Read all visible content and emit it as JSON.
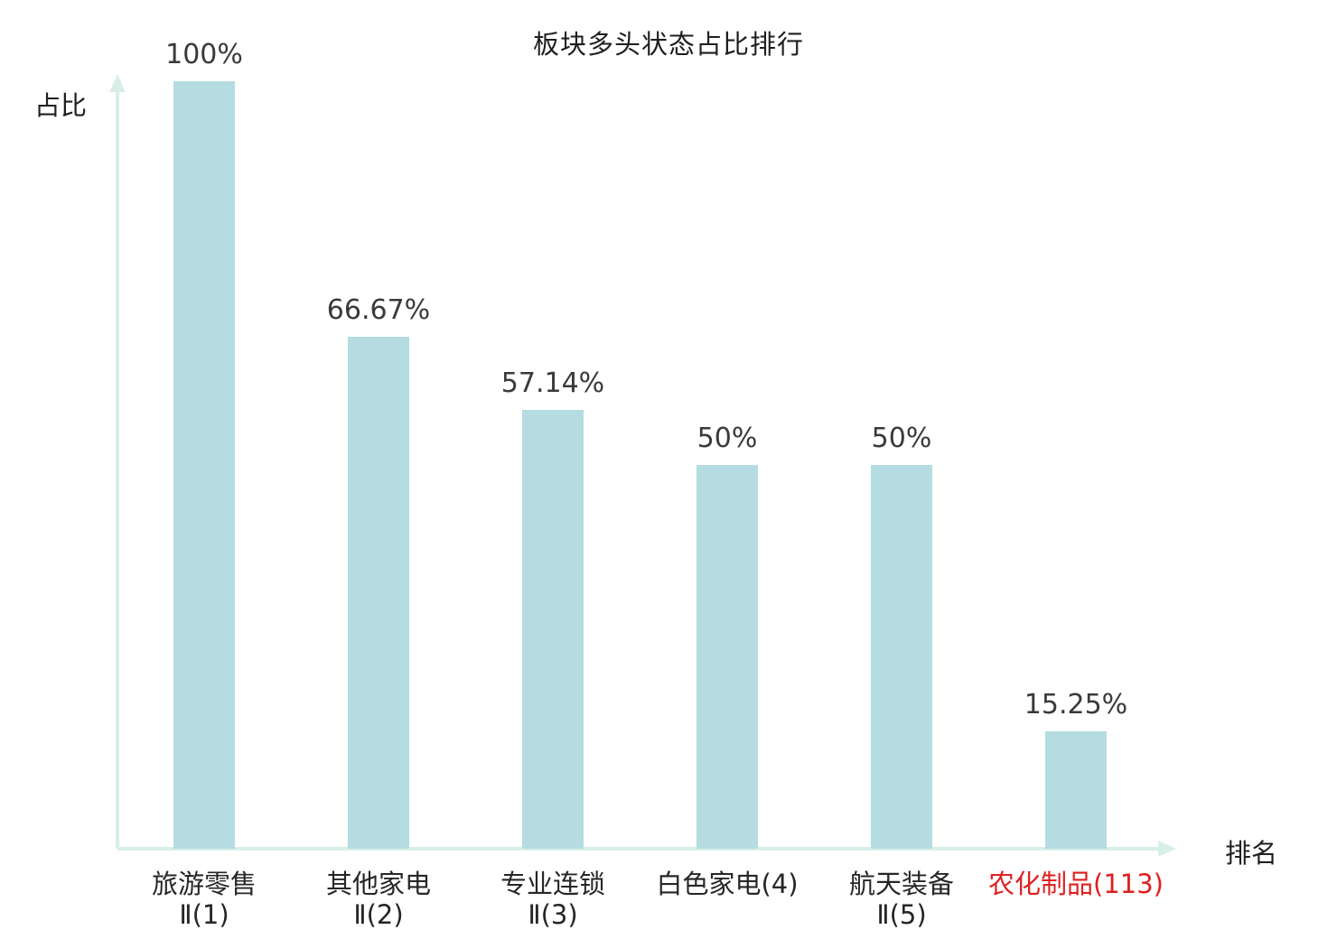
{
  "title": "板块多头状态占比排行",
  "ylabel": "占比",
  "xlabel": "排名",
  "chart_data": {
    "type": "bar",
    "title": "板块多头状态占比排行",
    "xlabel": "排名",
    "ylabel": "占比",
    "ylim": [
      0,
      100
    ],
    "grid": false,
    "legend": "none",
    "bar_color": "#b5dce1",
    "highlight_color": "#e02020",
    "axis_color": "#d8efe9",
    "text_color": "#3a3a3a",
    "categories": [
      "旅游零售Ⅱ(1)",
      "其他家电Ⅱ(2)",
      "专业连锁Ⅱ(3)",
      "白色家电(4)",
      "航天装备Ⅱ(5)",
      "农化制品(113)"
    ],
    "values": [
      100,
      66.67,
      57.14,
      50,
      50,
      15.25
    ],
    "bars": [
      {
        "label_lines": [
          "旅游零售",
          "Ⅱ(1)"
        ],
        "value": 100,
        "value_label": "100%",
        "highlight": false
      },
      {
        "label_lines": [
          "其他家电",
          "Ⅱ(2)"
        ],
        "value": 66.67,
        "value_label": "66.67%",
        "highlight": false
      },
      {
        "label_lines": [
          "专业连锁",
          "Ⅱ(3)"
        ],
        "value": 57.14,
        "value_label": "57.14%",
        "highlight": false
      },
      {
        "label_lines": [
          "白色家电(4)"
        ],
        "value": 50,
        "value_label": "50%",
        "highlight": false
      },
      {
        "label_lines": [
          "航天装备",
          "Ⅱ(5)"
        ],
        "value": 50,
        "value_label": "50%",
        "highlight": false
      },
      {
        "label_lines": [
          "农化制品(113)"
        ],
        "value": 15.25,
        "value_label": "15.25%",
        "highlight": true
      }
    ]
  }
}
